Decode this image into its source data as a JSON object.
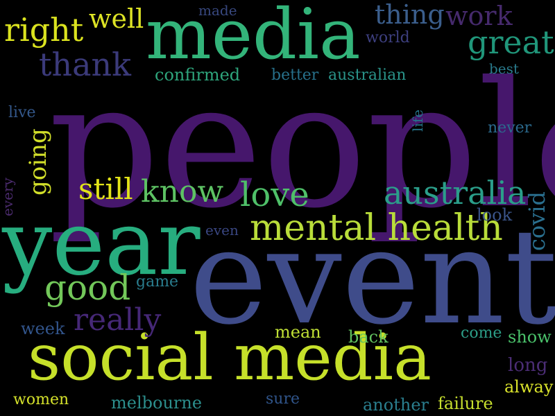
{
  "words": {
    "people": {
      "text": "people",
      "color": "#46176c"
    },
    "event": {
      "text": "event",
      "color": "#3f4c8a"
    },
    "social_media": {
      "text": "social media",
      "color": "#c6e02a"
    },
    "year": {
      "text": "year",
      "color": "#27ad7f"
    },
    "media": {
      "text": "media",
      "color": "#33b47a"
    },
    "mental_health": {
      "text": "mental health",
      "color": "#b9dd3a"
    },
    "right": {
      "text": "right",
      "color": "#dbe31f"
    },
    "well": {
      "text": "well",
      "color": "#dde325"
    },
    "made": {
      "text": "made",
      "color": "#38487f"
    },
    "thing": {
      "text": "thing",
      "color": "#3b5e8c"
    },
    "work": {
      "text": "work",
      "color": "#462a6d"
    },
    "world": {
      "text": "world",
      "color": "#3d3f7f"
    },
    "great": {
      "text": "great",
      "color": "#20967a"
    },
    "thank": {
      "text": "thank",
      "color": "#3b3a7a"
    },
    "confirmed": {
      "text": "confirmed",
      "color": "#2ea57c"
    },
    "better": {
      "text": "better",
      "color": "#27708b"
    },
    "australian": {
      "text": "australian",
      "color": "#2a948a"
    },
    "best": {
      "text": "best",
      "color": "#2a7b8d"
    },
    "live": {
      "text": "live",
      "color": "#34588b"
    },
    "life": {
      "text": "life",
      "color": "#25748b"
    },
    "never": {
      "text": "never",
      "color": "#2b6a8e"
    },
    "going": {
      "text": "going",
      "color": "#d2df2a"
    },
    "every": {
      "text": "every",
      "color": "#4b2b6e"
    },
    "still": {
      "text": "still",
      "color": "#e2e418"
    },
    "know": {
      "text": "know",
      "color": "#5dc263"
    },
    "love": {
      "text": "love",
      "color": "#4fc069"
    },
    "australia": {
      "text": "australia",
      "color": "#2b9e8a"
    },
    "covid": {
      "text": "covid",
      "color": "#2a6f8e"
    },
    "look": {
      "text": "look",
      "color": "#3a5489"
    },
    "even": {
      "text": "even",
      "color": "#3a4783"
    },
    "good": {
      "text": "good",
      "color": "#73c85a"
    },
    "game": {
      "text": "game",
      "color": "#2a7d8e"
    },
    "really": {
      "text": "really",
      "color": "#462877"
    },
    "week": {
      "text": "week",
      "color": "#32558c"
    },
    "mean": {
      "text": "mean",
      "color": "#bfdf35"
    },
    "back": {
      "text": "back",
      "color": "#62c25f"
    },
    "come": {
      "text": "come",
      "color": "#2c9d87"
    },
    "show": {
      "text": "show",
      "color": "#4ac16a"
    },
    "long": {
      "text": "long",
      "color": "#4b2d75"
    },
    "alway": {
      "text": "alway",
      "color": "#d9e22b"
    },
    "women": {
      "text": "women",
      "color": "#d4e12b"
    },
    "melbourne": {
      "text": "melbourne",
      "color": "#2c8f8d"
    },
    "sure": {
      "text": "sure",
      "color": "#30558b"
    },
    "another": {
      "text": "another",
      "color": "#2a7e8e"
    },
    "failure": {
      "text": "failure",
      "color": "#c7df2e"
    }
  }
}
